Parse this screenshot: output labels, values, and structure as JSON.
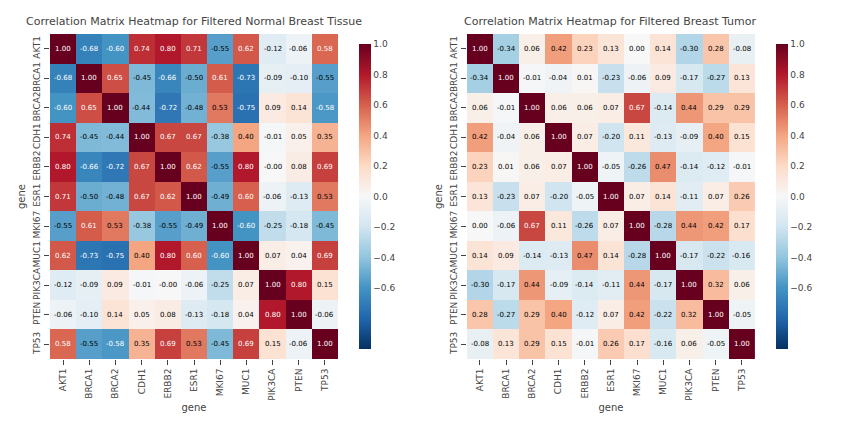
{
  "chart_data": [
    {
      "type": "heatmap",
      "title": "Correlation Matrix Heatmap for Filtered Normal Breast Tissue",
      "xlabel": "gene",
      "ylabel": "gene",
      "categories": [
        "AKT1",
        "BRCA1",
        "BRCA2",
        "CDH1",
        "ERBB2",
        "ESR1",
        "MKI67",
        "MUC1",
        "PIK3CA",
        "PTEN",
        "TP53"
      ],
      "values": [
        [
          1.0,
          -0.68,
          -0.6,
          0.74,
          0.8,
          0.71,
          -0.55,
          0.62,
          -0.12,
          -0.06,
          0.58
        ],
        [
          -0.68,
          1.0,
          0.65,
          -0.45,
          -0.66,
          -0.5,
          0.61,
          -0.73,
          -0.09,
          -0.1,
          -0.55
        ],
        [
          -0.6,
          0.65,
          1.0,
          -0.44,
          -0.72,
          -0.48,
          0.53,
          -0.75,
          0.09,
          0.14,
          -0.58
        ],
        [
          0.74,
          -0.45,
          -0.44,
          1.0,
          0.67,
          0.67,
          -0.38,
          0.4,
          -0.01,
          0.05,
          0.35
        ],
        [
          0.8,
          -0.66,
          -0.72,
          0.67,
          1.0,
          0.62,
          -0.55,
          0.8,
          -0.0,
          0.08,
          0.69
        ],
        [
          0.71,
          -0.5,
          -0.48,
          0.67,
          0.62,
          1.0,
          -0.49,
          0.6,
          -0.06,
          -0.13,
          0.53
        ],
        [
          -0.55,
          0.61,
          0.53,
          -0.38,
          -0.55,
          -0.49,
          1.0,
          -0.6,
          -0.25,
          -0.18,
          -0.45
        ],
        [
          0.62,
          -0.73,
          -0.75,
          0.4,
          0.8,
          0.6,
          -0.6,
          1.0,
          0.07,
          0.04,
          0.69
        ],
        [
          -0.12,
          -0.09,
          0.09,
          -0.01,
          -0.0,
          -0.06,
          -0.25,
          0.07,
          1.0,
          0.8,
          0.15
        ],
        [
          -0.06,
          -0.1,
          0.14,
          0.05,
          0.08,
          -0.13,
          -0.18,
          0.04,
          0.8,
          1.0,
          -0.06
        ],
        [
          0.58,
          -0.55,
          -0.58,
          0.35,
          0.69,
          0.53,
          -0.45,
          0.69,
          0.15,
          -0.06,
          1.0
        ]
      ],
      "value_labels": [
        [
          "1.00",
          "-0.68",
          "-0.60",
          "0.74",
          "0.80",
          "0.71",
          "-0.55",
          "0.62",
          "-0.12",
          "-0.06",
          "0.58"
        ],
        [
          "-0.68",
          "1.00",
          "0.65",
          "-0.45",
          "-0.66",
          "-0.50",
          "0.61",
          "-0.73",
          "-0.09",
          "-0.10",
          "-0.55"
        ],
        [
          "-0.60",
          "0.65",
          "1.00",
          "-0.44",
          "-0.72",
          "-0.48",
          "0.53",
          "-0.75",
          "0.09",
          "0.14",
          "-0.58"
        ],
        [
          "0.74",
          "-0.45",
          "-0.44",
          "1.00",
          "0.67",
          "0.67",
          "-0.38",
          "0.40",
          "-0.01",
          "0.05",
          "0.35"
        ],
        [
          "0.80",
          "-0.66",
          "-0.72",
          "0.67",
          "1.00",
          "0.62",
          "-0.55",
          "0.80",
          "-0.00",
          "0.08",
          "0.69"
        ],
        [
          "0.71",
          "-0.50",
          "-0.48",
          "0.67",
          "0.62",
          "1.00",
          "-0.49",
          "0.60",
          "-0.06",
          "-0.13",
          "0.53"
        ],
        [
          "-0.55",
          "0.61",
          "0.53",
          "-0.38",
          "-0.55",
          "-0.49",
          "1.00",
          "-0.60",
          "-0.25",
          "-0.18",
          "-0.45"
        ],
        [
          "0.62",
          "-0.73",
          "-0.75",
          "0.40",
          "0.80",
          "0.60",
          "-0.60",
          "1.00",
          "0.07",
          "0.04",
          "0.69"
        ],
        [
          "-0.12",
          "-0.09",
          "0.09",
          "-0.01",
          "-0.00",
          "-0.06",
          "-0.25",
          "0.07",
          "1.00",
          "0.80",
          "0.15"
        ],
        [
          "-0.06",
          "-0.10",
          "0.14",
          "0.05",
          "0.08",
          "-0.13",
          "-0.18",
          "0.04",
          "0.80",
          "1.00",
          "-0.06"
        ],
        [
          "0.58",
          "-0.55",
          "-0.58",
          "0.35",
          "0.69",
          "0.53",
          "-0.45",
          "0.69",
          "0.15",
          "-0.06",
          "1.00"
        ]
      ],
      "color": "RdBu_r",
      "zlim": [
        -1.0,
        1.0
      ],
      "zticks": [
        {
          "value": 1.0,
          "label": "1.0"
        },
        0.8,
        0.6,
        0.4,
        0.2,
        {
          "value": 0.0,
          "label": "0.0"
        },
        {
          "value": -0.2,
          "label": "−0.2"
        },
        {
          "value": -0.4,
          "label": "−0.4"
        },
        {
          "value": -0.6,
          "label": "−0.6"
        }
      ],
      "data_labels": true,
      "grid": false
    },
    {
      "type": "heatmap",
      "title": "Correlation Matrix Heatmap for Filtered Breast Tumor",
      "xlabel": "gene",
      "ylabel": "gene",
      "categories": [
        "AKT1",
        "BRCA1",
        "BRCA2",
        "CDH1",
        "ERBB2",
        "ESR1",
        "MKI67",
        "MUC1",
        "PIK3CA",
        "PTEN",
        "TP53"
      ],
      "values": [
        [
          1.0,
          -0.34,
          0.06,
          0.42,
          0.23,
          0.13,
          0.0,
          0.14,
          -0.3,
          0.28,
          -0.08
        ],
        [
          -0.34,
          1.0,
          -0.01,
          -0.04,
          0.01,
          -0.23,
          -0.06,
          0.09,
          -0.17,
          -0.27,
          0.13
        ],
        [
          0.06,
          -0.01,
          1.0,
          0.06,
          0.06,
          0.07,
          0.67,
          -0.14,
          0.44,
          0.29,
          0.29
        ],
        [
          0.42,
          -0.04,
          0.06,
          1.0,
          0.07,
          -0.2,
          0.11,
          -0.13,
          -0.09,
          0.4,
          0.15
        ],
        [
          0.23,
          0.01,
          0.06,
          0.07,
          1.0,
          -0.05,
          -0.26,
          0.47,
          -0.14,
          -0.12,
          -0.01
        ],
        [
          0.13,
          -0.23,
          0.07,
          -0.2,
          -0.05,
          1.0,
          0.07,
          0.14,
          -0.11,
          0.07,
          0.26
        ],
        [
          0.0,
          -0.06,
          0.67,
          0.11,
          -0.26,
          0.07,
          1.0,
          -0.28,
          0.44,
          0.42,
          0.17
        ],
        [
          0.14,
          0.09,
          -0.14,
          -0.13,
          0.47,
          0.14,
          -0.28,
          1.0,
          -0.17,
          -0.22,
          -0.16
        ],
        [
          -0.3,
          -0.17,
          0.44,
          -0.09,
          -0.14,
          -0.11,
          0.44,
          -0.17,
          1.0,
          0.32,
          0.06
        ],
        [
          0.28,
          -0.27,
          0.29,
          0.4,
          -0.12,
          0.07,
          0.42,
          -0.22,
          0.32,
          1.0,
          -0.05
        ],
        [
          -0.08,
          0.13,
          0.29,
          0.15,
          -0.01,
          0.26,
          0.17,
          -0.16,
          0.06,
          -0.05,
          1.0
        ]
      ],
      "value_labels": [
        [
          "1.00",
          "-0.34",
          "0.06",
          "0.42",
          "0.23",
          "0.13",
          "0.00",
          "0.14",
          "-0.30",
          "0.28",
          "-0.08"
        ],
        [
          "-0.34",
          "1.00",
          "-0.01",
          "-0.04",
          "0.01",
          "-0.23",
          "-0.06",
          "0.09",
          "-0.17",
          "-0.27",
          "0.13"
        ],
        [
          "0.06",
          "-0.01",
          "1.00",
          "0.06",
          "0.06",
          "0.07",
          "0.67",
          "-0.14",
          "0.44",
          "0.29",
          "0.29"
        ],
        [
          "0.42",
          "-0.04",
          "0.06",
          "1.00",
          "0.07",
          "-0.20",
          "0.11",
          "-0.13",
          "-0.09",
          "0.40",
          "0.15"
        ],
        [
          "0.23",
          "0.01",
          "0.06",
          "0.07",
          "1.00",
          "-0.05",
          "-0.26",
          "0.47",
          "-0.14",
          "-0.12",
          "-0.01"
        ],
        [
          "0.13",
          "-0.23",
          "0.07",
          "-0.20",
          "-0.05",
          "1.00",
          "0.07",
          "0.14",
          "-0.11",
          "0.07",
          "0.26"
        ],
        [
          "0.00",
          "-0.06",
          "0.67",
          "0.11",
          "-0.26",
          "0.07",
          "1.00",
          "-0.28",
          "0.44",
          "0.42",
          "0.17"
        ],
        [
          "0.14",
          "0.09",
          "-0.14",
          "-0.13",
          "0.47",
          "0.14",
          "-0.28",
          "1.00",
          "-0.17",
          "-0.22",
          "-0.16"
        ],
        [
          "-0.30",
          "-0.17",
          "0.44",
          "-0.09",
          "-0.14",
          "-0.11",
          "0.44",
          "-0.17",
          "1.00",
          "0.32",
          "0.06"
        ],
        [
          "0.28",
          "-0.27",
          "0.29",
          "0.40",
          "-0.12",
          "0.07",
          "0.42",
          "-0.22",
          "0.32",
          "1.00",
          "-0.05"
        ],
        [
          "-0.08",
          "0.13",
          "0.29",
          "0.15",
          "-0.01",
          "0.26",
          "0.17",
          "-0.16",
          "0.06",
          "-0.05",
          "1.00"
        ]
      ],
      "color": "RdBu_r",
      "zlim": [
        -1.0,
        1.0
      ],
      "zticks": [
        {
          "value": 1.0,
          "label": "1.0"
        },
        0.8,
        0.6,
        0.4,
        0.2,
        {
          "value": 0.0,
          "label": "0.0"
        },
        {
          "value": -0.2,
          "label": "−0.2"
        },
        {
          "value": -0.4,
          "label": "−0.4"
        },
        {
          "value": -0.6,
          "label": "−0.6"
        }
      ],
      "data_labels": true,
      "grid": false
    }
  ]
}
